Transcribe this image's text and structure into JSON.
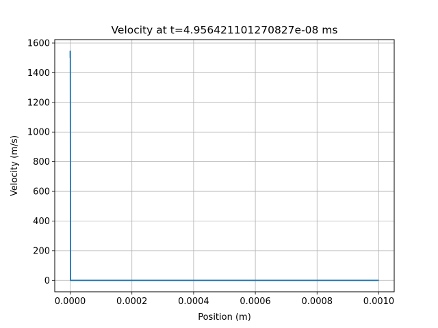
{
  "chart_data": {
    "type": "line",
    "title": "Velocity at t=4.956421101270827e-08 ms",
    "xlabel": "Position (m)",
    "ylabel": "Velocity (m/s)",
    "xlim": [
      -5e-05,
      0.00105
    ],
    "ylim": [
      -77,
      1623
    ],
    "xticks": [
      0.0,
      0.0002,
      0.0004,
      0.0006,
      0.0008,
      0.001
    ],
    "xtick_labels": [
      "0.0000",
      "0.0002",
      "0.0004",
      "0.0006",
      "0.0008",
      "0.0010"
    ],
    "yticks": [
      0,
      200,
      400,
      600,
      800,
      1000,
      1200,
      1400,
      1600
    ],
    "ytick_labels": [
      "0",
      "200",
      "400",
      "600",
      "800",
      "1000",
      "1200",
      "1400",
      "1600"
    ],
    "grid": true,
    "series": [
      {
        "color": "#1f77b4",
        "x": [
          0.0,
          0.0,
          5e-07,
          1e-06,
          0.001
        ],
        "y": [
          1500,
          1545,
          1545,
          0,
          0
        ]
      }
    ]
  }
}
